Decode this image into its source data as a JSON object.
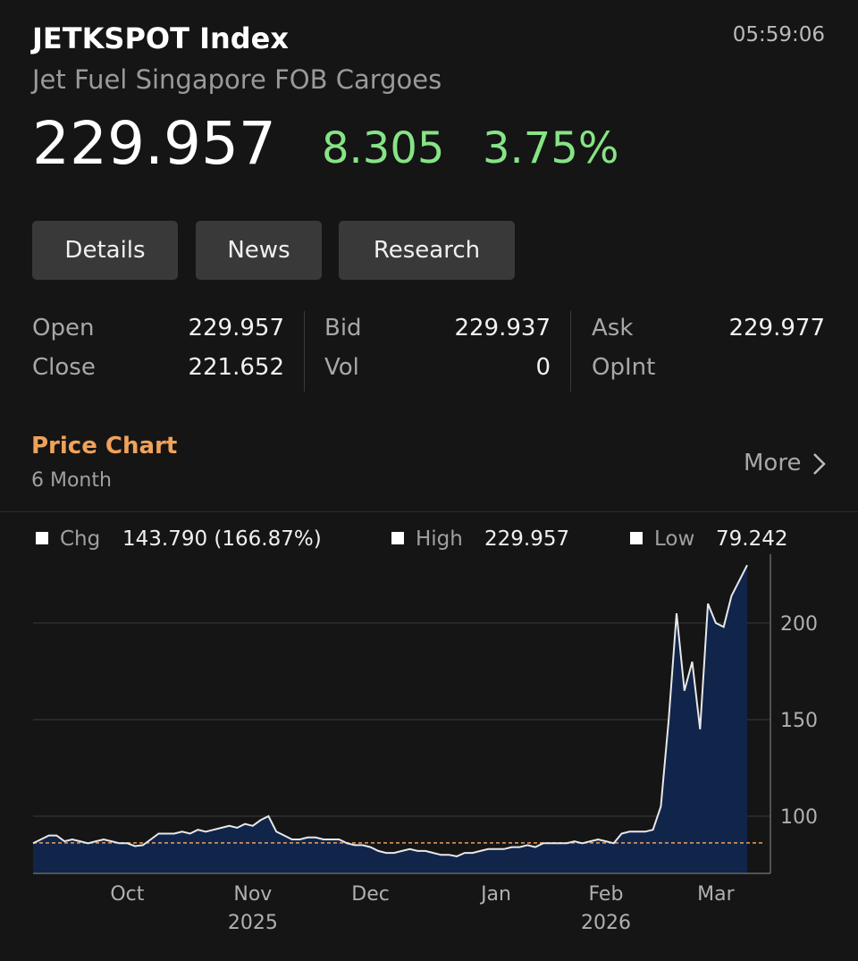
{
  "header": {
    "title": "JETKSPOT Index",
    "subtitle": "Jet Fuel Singapore FOB Cargoes",
    "time": "05:59:06",
    "price": "229.957",
    "change": "8.305",
    "change_pct": "3.75%"
  },
  "buttons": [
    "Details",
    "News",
    "Research"
  ],
  "quote": {
    "rows": [
      [
        {
          "label": "Open",
          "value": "229.957"
        },
        {
          "label": "Bid",
          "value": "229.937"
        },
        {
          "label": "Ask",
          "value": "229.977"
        }
      ],
      [
        {
          "label": "Close",
          "value": "221.652"
        },
        {
          "label": "Vol",
          "value": "0"
        },
        {
          "label": "OpInt"
        }
      ]
    ]
  },
  "section": {
    "title": "Price Chart",
    "period": "6 Month",
    "more": "More"
  },
  "chart_data": {
    "type": "area",
    "stats": [
      {
        "label": "Chg",
        "value": "143.790 (166.87%)"
      },
      {
        "label": "High",
        "value": "229.957"
      },
      {
        "label": "Low",
        "value": "79.242"
      }
    ],
    "categories": [
      null,
      null,
      null,
      null,
      null,
      null,
      null,
      null,
      null,
      null,
      null,
      null,
      "Oct",
      null,
      null,
      null,
      null,
      null,
      null,
      null,
      null,
      null,
      null,
      null,
      null,
      null,
      null,
      null,
      "Nov",
      null,
      null,
      null,
      null,
      null,
      null,
      null,
      null,
      null,
      null,
      null,
      null,
      null,
      null,
      "Dec",
      null,
      null,
      null,
      null,
      null,
      null,
      null,
      null,
      null,
      null,
      null,
      null,
      null,
      null,
      null,
      "Jan",
      null,
      null,
      null,
      null,
      null,
      null,
      null,
      null,
      null,
      null,
      null,
      null,
      null,
      "Feb",
      null,
      null,
      null,
      null,
      null,
      null,
      null,
      null,
      null,
      null,
      null,
      null,
      null,
      "Mar",
      null,
      null,
      null,
      null
    ],
    "category_years": [
      null,
      null,
      null,
      null,
      null,
      null,
      null,
      null,
      null,
      null,
      null,
      null,
      null,
      null,
      null,
      null,
      null,
      null,
      null,
      null,
      null,
      null,
      null,
      null,
      null,
      null,
      null,
      null,
      "2025",
      null,
      null,
      null,
      null,
      null,
      null,
      null,
      null,
      null,
      null,
      null,
      null,
      null,
      null,
      null,
      null,
      null,
      null,
      null,
      null,
      null,
      null,
      null,
      null,
      null,
      null,
      null,
      null,
      null,
      null,
      null,
      null,
      null,
      null,
      null,
      null,
      null,
      null,
      null,
      null,
      null,
      null,
      null,
      null,
      "2026",
      null,
      null,
      null,
      null,
      null,
      null,
      null,
      null,
      null,
      null,
      null,
      null,
      null,
      null,
      null,
      null,
      null,
      null
    ],
    "values": [
      86,
      88,
      90,
      90,
      87,
      88,
      87,
      86,
      87,
      88,
      87,
      86,
      86,
      84.5,
      85,
      88,
      91,
      91,
      91,
      92,
      91,
      93,
      92,
      93,
      94,
      95,
      94,
      96,
      95,
      98,
      100,
      92,
      90,
      88,
      88,
      89,
      89,
      88,
      88,
      88,
      86,
      85,
      85,
      84,
      82,
      81,
      81,
      82,
      83,
      82,
      82,
      81,
      80,
      80,
      79.242,
      81,
      81,
      82,
      83,
      83,
      83,
      84,
      84,
      85,
      84,
      86,
      86,
      86,
      86,
      87,
      86,
      87,
      88,
      87,
      86,
      91,
      92,
      92,
      92,
      93,
      105,
      150,
      205,
      165,
      180,
      145,
      210,
      200,
      198,
      214,
      222,
      229.957
    ],
    "color": "#e8e8e8",
    "fill": "#11244a",
    "reference": 86.167,
    "reference_color": "#e8a060",
    "ylim": [
      70.4,
      235.6
    ],
    "yticks": [
      100,
      150,
      200
    ],
    "grid": true
  }
}
